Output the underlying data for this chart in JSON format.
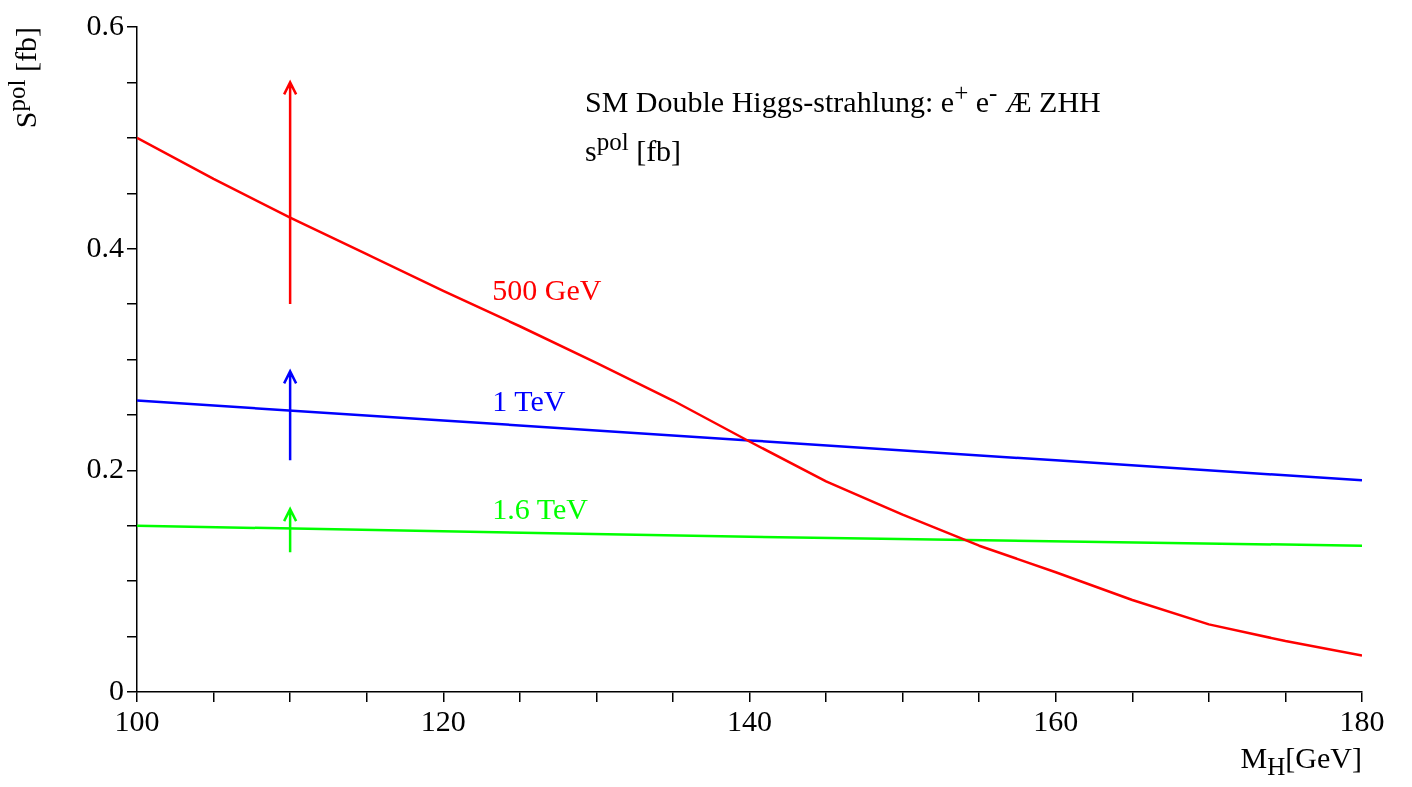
{
  "chart_data": {
    "type": "line",
    "xlabel": "M$_{H}$[GeV]",
    "ylabel": "S$^{pol}$ [fb]",
    "annotations": [
      "SM Double Higgs-strahlung: e$^{+}$ e$^{-}$ Æ ZHH",
      "s$^{pol}$ [fb]"
    ],
    "xlim": [
      100,
      180
    ],
    "ylim": [
      0,
      0.6
    ],
    "xticks": [
      100,
      {
        "value": 105,
        "label": null
      },
      120,
      {
        "value": 110,
        "label": null
      },
      {
        "value": 115,
        "label": null
      },
      {
        "value": 125,
        "label": null
      },
      {
        "value": 130,
        "label": null
      },
      {
        "value": 135,
        "label": null
      },
      140,
      {
        "value": 145,
        "label": null
      },
      {
        "value": 150,
        "label": null
      },
      {
        "value": 155,
        "label": null
      },
      160,
      {
        "value": 165,
        "label": null
      },
      {
        "value": 170,
        "label": null
      },
      {
        "value": 175,
        "label": null
      },
      180
    ],
    "yticks": [
      0,
      {
        "value": 0.05,
        "label": null
      },
      {
        "value": 0.1,
        "label": null
      },
      {
        "value": 0.15,
        "label": null
      },
      0.2,
      {
        "value": 0.25,
        "label": null
      },
      {
        "value": 0.3,
        "label": null
      },
      {
        "value": 0.35,
        "label": null
      },
      0.4,
      {
        "value": 0.45,
        "label": null
      },
      {
        "value": 0.5,
        "label": null
      },
      {
        "value": 0.55,
        "label": null
      },
      0.6
    ],
    "grid": false,
    "legend": false,
    "marker": "none",
    "line_style": "solid",
    "series": [
      {
        "name": "500 GeV",
        "color": "#ff0000",
        "x": [
          100,
          105,
          110,
          115,
          120,
          125,
          130,
          135,
          140,
          145,
          150,
          155,
          160,
          165,
          170,
          175,
          180
        ],
        "values": [
          0.5,
          0.463,
          0.428,
          0.395,
          0.362,
          0.33,
          0.297,
          0.263,
          0.226,
          0.19,
          0.16,
          0.132,
          0.108,
          0.083,
          0.061,
          0.046,
          0.033
        ]
      },
      {
        "name": "1 TeV",
        "color": "#0000ff",
        "x": [
          100,
          120,
          140,
          160,
          180
        ],
        "values": [
          0.263,
          0.245,
          0.227,
          0.209,
          0.191
        ]
      },
      {
        "name": "1.6 TeV",
        "color": "#00ff00",
        "x": [
          100,
          140,
          180
        ],
        "values": [
          0.15,
          0.14,
          0.132
        ]
      }
    ]
  }
}
